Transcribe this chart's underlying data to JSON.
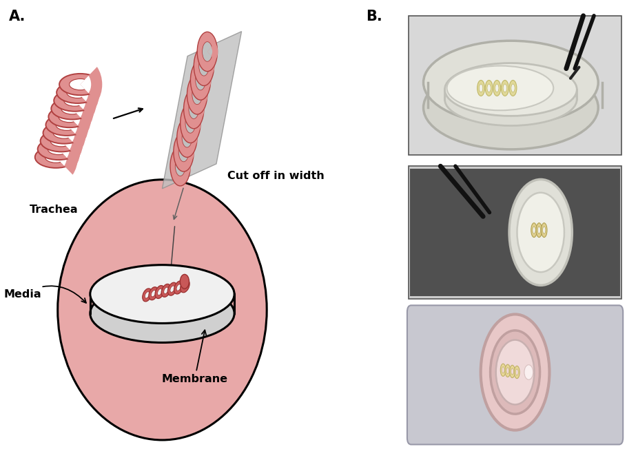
{
  "title_A": "A.",
  "title_B": "B.",
  "label_trachea": "Trachea",
  "label_cut": "Cut off in width",
  "label_media": "Media",
  "label_membrane": "Membrane",
  "bg_color": "#ffffff",
  "pink_outer": "#e8a8a8",
  "ring_dark": "#b04040",
  "ring_fill": "#e09090",
  "ring_mid": "#d07070",
  "dish_gray": "#d0d0d0",
  "dish_white": "#f0f0f0",
  "plane_gray": "#b8b8b8",
  "panel_label_fontsize": 15,
  "label_fontsize": 11.5,
  "photo1_bg": "#d8d8d8",
  "photo1_dish_outer": "#c8c8c0",
  "photo1_dish_inner": "#e8e8e0",
  "photo2_bg": "#c8c8c8",
  "photo2_dish": "#e0e0d8",
  "photo3_bg": "#b8b8c0",
  "photo3_outer": "#e0c8c8",
  "photo3_inner": "#e8d0d0",
  "photo3_mem": "#f0dada"
}
